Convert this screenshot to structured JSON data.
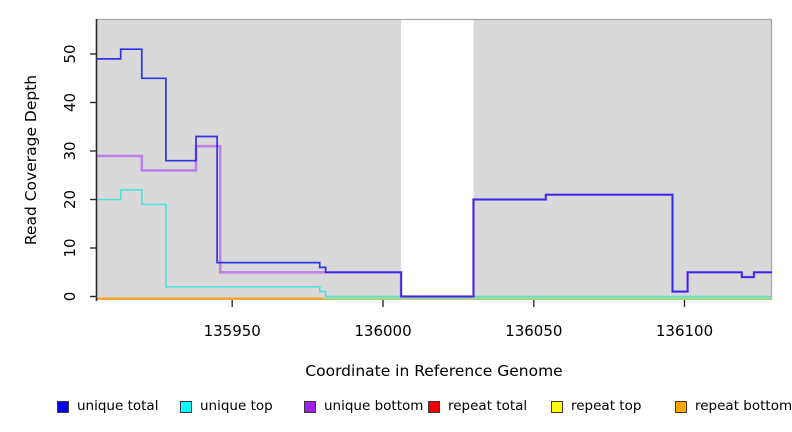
{
  "figure": {
    "x_axis_title": "Coordinate in Reference Genome",
    "y_axis_title": "Read Coverage Depth"
  },
  "legend": {
    "items": [
      {
        "label": "unique total",
        "swatch_color": "#0000ee"
      },
      {
        "label": "unique top",
        "swatch_color": "#00ffff"
      },
      {
        "label": "unique bottom",
        "swatch_color": "#a020f0"
      },
      {
        "label": "repeat total",
        "swatch_color": "#ee0000"
      },
      {
        "label": "repeat top",
        "swatch_color": "#ffff00"
      },
      {
        "label": "repeat bottom",
        "swatch_color": "#ffa500"
      }
    ]
  },
  "chart_data": {
    "type": "line",
    "subtype": "step",
    "title": "",
    "xlabel": "Coordinate in Reference Genome",
    "ylabel": "Read Coverage Depth",
    "xlim": [
      135905,
      136129
    ],
    "ylim": [
      0,
      56
    ],
    "xticks": [
      135950,
      136000,
      136050,
      136100
    ],
    "yticks": [
      0,
      10,
      20,
      30,
      40,
      50
    ],
    "grid": false,
    "legend_position": "bottom",
    "plot_bg_color": "#d9d9d9",
    "plot_border_color": "#a8a8a8",
    "gap_region": {
      "x_start": 136006,
      "x_end": 136030,
      "color": "#ffffff",
      "note": "white unshaded band in plot background"
    },
    "series": [
      {
        "name": "unique total",
        "color": "#2121e8",
        "steps": [
          [
            135905,
            49
          ],
          [
            135913,
            51
          ],
          [
            135920,
            45
          ],
          [
            135928,
            28
          ],
          [
            135938,
            33
          ],
          [
            135945,
            7
          ],
          [
            135979,
            6
          ],
          [
            135981,
            5
          ],
          [
            136006,
            0
          ],
          [
            136030,
            20
          ],
          [
            136054,
            21
          ],
          [
            136096,
            1
          ],
          [
            136101,
            5
          ],
          [
            136119,
            4
          ],
          [
            136123,
            5
          ],
          [
            136129,
            5
          ]
        ]
      },
      {
        "name": "unique top",
        "color": "#4fe0e0",
        "steps": [
          [
            135905,
            20
          ],
          [
            135913,
            22
          ],
          [
            135920,
            19
          ],
          [
            135928,
            2
          ],
          [
            135979,
            1
          ],
          [
            135981,
            0
          ],
          [
            136129,
            0
          ]
        ]
      },
      {
        "name": "unique bottom",
        "color": "#bb82e8",
        "steps": [
          [
            135905,
            29
          ],
          [
            135920,
            26
          ],
          [
            135938,
            31
          ],
          [
            135946,
            5
          ],
          [
            136006,
            0
          ],
          [
            136030,
            20
          ],
          [
            136054,
            21
          ],
          [
            136096,
            1
          ],
          [
            136101,
            5
          ],
          [
            136119,
            4
          ],
          [
            136123,
            5
          ],
          [
            136129,
            5
          ]
        ]
      },
      {
        "name": "repeat total",
        "color": "#e60000",
        "steps": [
          [
            135905,
            0
          ],
          [
            136129,
            0
          ]
        ]
      },
      {
        "name": "repeat top",
        "color": "#f0f000",
        "steps": [
          [
            135905,
            0
          ],
          [
            136129,
            0
          ]
        ]
      },
      {
        "name": "repeat bottom",
        "color": "#ff9e1b",
        "steps": [
          [
            135905,
            0
          ],
          [
            135980,
            0
          ]
        ]
      }
    ],
    "overlap_baseline": {
      "x_start": 135980,
      "x_end": 136129,
      "color": "#93d593",
      "note": "pale green line at depth 0 where top-strand lines overlap"
    }
  }
}
